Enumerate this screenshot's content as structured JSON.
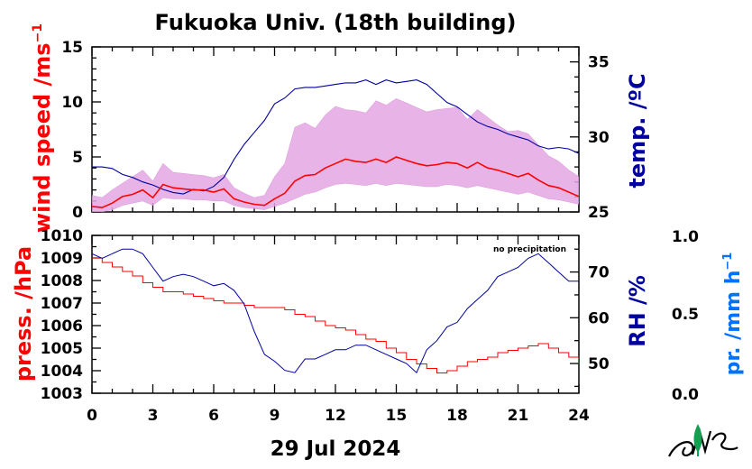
{
  "chart_data": [
    {
      "type": "line",
      "panel": "top",
      "title": "Fukuoka Univ. (18th building)",
      "left_axis": {
        "label_main": "wind speed /ms",
        "label_sup": "−1",
        "ylim": [
          0,
          15
        ],
        "ticks": [
          "0",
          "5",
          "10",
          "15"
        ],
        "color": "#ff0000"
      },
      "right_axis": {
        "label": "temp. /ºC",
        "ylim": [
          25,
          36
        ],
        "ticks": [
          "25",
          "30",
          "35"
        ],
        "color": "#0000a0"
      },
      "x_range_hours": [
        0,
        24
      ],
      "series": [
        {
          "axis": "right",
          "color": "#0000a0",
          "x": [
            0,
            0.5,
            1,
            1.5,
            2,
            2.5,
            3,
            3.5,
            4,
            4.5,
            5,
            5.5,
            6,
            6.5,
            7,
            7.5,
            8,
            8.5,
            9,
            9.5,
            10,
            10.5,
            11,
            11.5,
            12,
            12.5,
            13,
            13.5,
            14,
            14.5,
            15,
            15.5,
            16,
            16.5,
            17,
            17.5,
            18,
            18.5,
            19,
            19.5,
            20,
            20.5,
            21,
            21.5,
            22,
            22.5,
            23,
            23.5,
            24
          ],
          "y": [
            28,
            28,
            27.9,
            27.5,
            27.3,
            27,
            26.8,
            26.5,
            26.3,
            26.2,
            26.5,
            26.4,
            26.7,
            27.3,
            28.5,
            29.5,
            30.3,
            31.1,
            32.2,
            32.6,
            33.2,
            33.3,
            33.3,
            33.4,
            33.5,
            33.6,
            33.6,
            33.8,
            33.5,
            33.8,
            33.6,
            33.7,
            33.8,
            33.5,
            32.9,
            32.3,
            32,
            31.5,
            31,
            30.7,
            30.5,
            30.2,
            30,
            29.8,
            29.4,
            29.2,
            29.3,
            29.2,
            28.9
          ]
        },
        {
          "axis": "left",
          "color": "#ff0000",
          "x": [
            0,
            0.5,
            1,
            1.5,
            2,
            2.5,
            3,
            3.5,
            4,
            4.5,
            5,
            5.5,
            6,
            6.5,
            7,
            7.5,
            8,
            8.5,
            9,
            9.5,
            10,
            10.5,
            11,
            11.5,
            12,
            12.5,
            13,
            13.5,
            14,
            14.5,
            15,
            15.5,
            16,
            16.5,
            17,
            17.5,
            18,
            18.5,
            19,
            19.5,
            20,
            20.5,
            21,
            21.5,
            22,
            22.5,
            23,
            23.5,
            24
          ],
          "y": [
            0.5,
            0.4,
            0.8,
            1.4,
            1.6,
            2,
            1.3,
            2.5,
            2.2,
            2.1,
            2,
            2,
            1.8,
            2.1,
            1.2,
            0.9,
            0.7,
            0.6,
            1.2,
            1.7,
            2.8,
            3.3,
            3.4,
            4,
            4.4,
            4.8,
            4.6,
            4.5,
            4.8,
            4.5,
            5,
            4.7,
            4.4,
            4.2,
            4.3,
            4.5,
            4.4,
            4,
            4.5,
            4,
            3.8,
            3.5,
            3.2,
            3.5,
            2.9,
            2.4,
            2.2,
            1.8,
            1.4
          ]
        },
        {
          "axis": "left",
          "color": "#e0a0e0",
          "style": "gust-band",
          "x": [
            0,
            0.5,
            1,
            1.5,
            2,
            2.5,
            3,
            3.5,
            4,
            4.5,
            5,
            5.5,
            6,
            6.5,
            7,
            7.5,
            8,
            8.5,
            9,
            9.5,
            10,
            10.5,
            11,
            11.5,
            12,
            12.5,
            13,
            13.5,
            14,
            14.5,
            15,
            15.5,
            16,
            16.5,
            17,
            17.5,
            18,
            18.5,
            19,
            19.5,
            20,
            20.5,
            21,
            21.5,
            22,
            22.5,
            23,
            23.5,
            24
          ],
          "y_low": [
            0,
            0,
            0.2,
            0.6,
            0.8,
            1,
            0.6,
            1.3,
            1.2,
            1.2,
            1.1,
            1.1,
            1,
            1,
            0.6,
            0.4,
            0.3,
            0.2,
            0.5,
            0.8,
            1.2,
            1.6,
            1.8,
            2.2,
            2.5,
            2.6,
            2.5,
            2.4,
            2.6,
            2.4,
            2.6,
            2.5,
            2.4,
            2.3,
            2.3,
            2.5,
            2.4,
            2.2,
            2.4,
            2.2,
            2,
            1.8,
            1.6,
            1.8,
            1.5,
            1.2,
            1.1,
            0.9,
            0.7
          ],
          "y_high": [
            1.5,
            1.3,
            2,
            2.6,
            3.2,
            3.8,
            2.8,
            4.4,
            3.6,
            3.5,
            3.4,
            3.3,
            3.1,
            3.4,
            2.2,
            1.7,
            1.3,
            1.5,
            3.2,
            4.4,
            7.7,
            8.1,
            7.6,
            8.8,
            9.6,
            9.3,
            9.2,
            9,
            10.1,
            9.7,
            10.3,
            9.9,
            9.5,
            9.1,
            9.3,
            9.4,
            9.5,
            8.4,
            9.3,
            8.6,
            7.9,
            7.3,
            7.4,
            7.1,
            6.1,
            5.1,
            4.6,
            3.8,
            3.2
          ]
        }
      ]
    },
    {
      "type": "line",
      "panel": "bottom",
      "left_axis": {
        "label": "press. /hPa",
        "ylim": [
          1003,
          1010
        ],
        "ticks": [
          "1003",
          "1004",
          "1005",
          "1006",
          "1007",
          "1008",
          "1009",
          "1010"
        ],
        "color": "#ff0000"
      },
      "rh_axis": {
        "label": "RH /%",
        "ylim": [
          43.5,
          78
        ],
        "ticks": [
          "50",
          "60",
          "70"
        ],
        "color": "#0000a0"
      },
      "precip_axis": {
        "label_main": "pr. /mm h",
        "label_sup": "−1",
        "ticks": [
          "0.0",
          "0.5",
          "1.0"
        ],
        "color": "#0070ff"
      },
      "annotation": "no precipitation",
      "x_ticks": [
        "0",
        "3",
        "6",
        "9",
        "12",
        "15",
        "18",
        "21",
        "24"
      ],
      "xlabel": "29 Jul 2024",
      "x_range_hours": [
        0,
        24
      ],
      "series": [
        {
          "axis": "left",
          "color": "#ff0000",
          "x": [
            0,
            0.5,
            1,
            1.5,
            2,
            2.5,
            3,
            3.5,
            4,
            4.5,
            5,
            5.5,
            6,
            6.5,
            7,
            7.5,
            8,
            8.5,
            9,
            9.5,
            10,
            10.5,
            11,
            11.5,
            12,
            12.5,
            13,
            13.5,
            14,
            14.5,
            15,
            15.5,
            16,
            16.5,
            17,
            17.5,
            18,
            18.5,
            19,
            19.5,
            20,
            20.5,
            21,
            21.5,
            22,
            22.5,
            23,
            23.5,
            24
          ],
          "y": [
            1009,
            1008.8,
            1008.6,
            1008.4,
            1008.2,
            1007.9,
            1007.7,
            1007.5,
            1007.5,
            1007.4,
            1007.3,
            1007.2,
            1007.1,
            1007,
            1007,
            1006.9,
            1006.8,
            1006.8,
            1006.8,
            1006.7,
            1006.5,
            1006.4,
            1006.2,
            1006,
            1005.9,
            1005.8,
            1005.6,
            1005.4,
            1005.3,
            1005,
            1004.8,
            1004.5,
            1004.3,
            1004.1,
            1003.9,
            1004,
            1004.2,
            1004.4,
            1004.5,
            1004.6,
            1004.8,
            1004.9,
            1005,
            1005.1,
            1005.2,
            1005,
            1004.8,
            1004.6,
            1004.3
          ]
        },
        {
          "axis": "rh",
          "color": "#0000a0",
          "x": [
            0,
            0.5,
            1,
            1.5,
            2,
            2.5,
            3,
            3.5,
            4,
            4.5,
            5,
            5.5,
            6,
            6.5,
            7,
            7.5,
            8,
            8.5,
            9,
            9.5,
            10,
            10.5,
            11,
            11.5,
            12,
            12.5,
            13,
            13.5,
            14,
            14.5,
            15,
            15.5,
            16,
            16.5,
            17,
            17.5,
            18,
            18.5,
            19,
            19.5,
            20,
            20.5,
            21,
            21.5,
            22,
            22.5,
            23,
            23.5,
            24
          ],
          "y": [
            74,
            73,
            74,
            75,
            75,
            74,
            71,
            68,
            69,
            69.5,
            69,
            68,
            67,
            67.5,
            66,
            63,
            57,
            52,
            50.5,
            48.5,
            48,
            51,
            51,
            52,
            53,
            53,
            54,
            54,
            53,
            52,
            51,
            50,
            48,
            53,
            55,
            58,
            59,
            62,
            64,
            66,
            69,
            70,
            71,
            73,
            74,
            72,
            70,
            68,
            68
          ]
        }
      ]
    }
  ]
}
